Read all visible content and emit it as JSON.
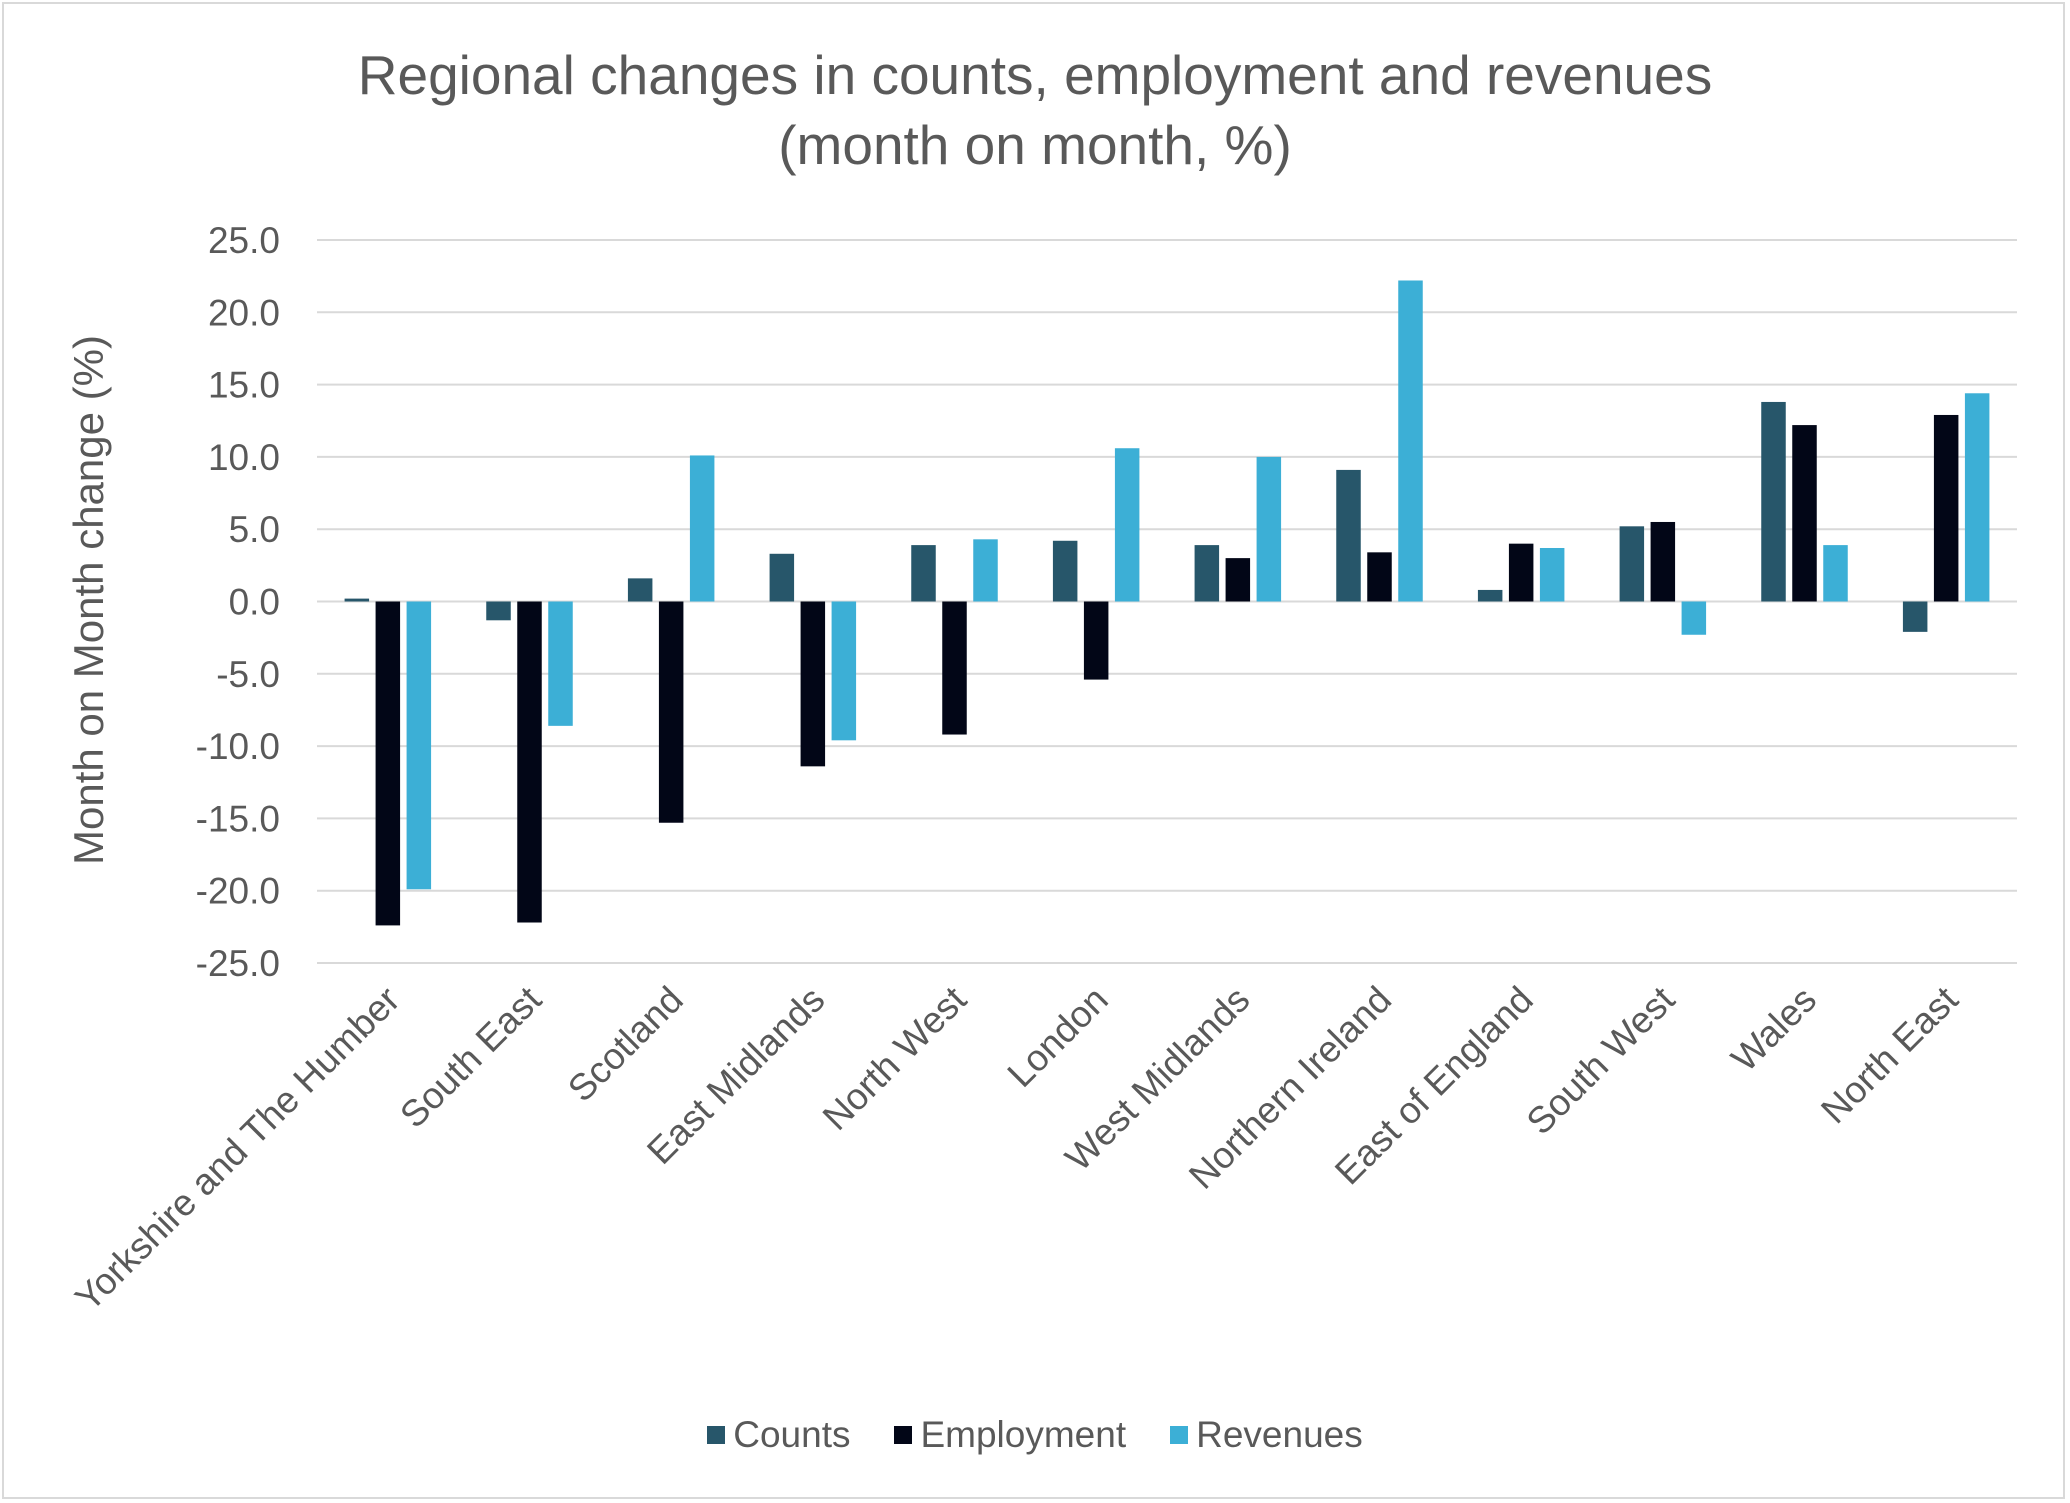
{
  "chart_data": {
    "type": "bar",
    "title_line1": "Regional changes in counts, employment and revenues",
    "title_line2": "(month on month, %)",
    "xlabel": "",
    "ylabel": "Month on Month change (%)",
    "ylim": [
      -25,
      25
    ],
    "ytick_step": 5,
    "ytick_labels": [
      "25.0",
      "20.0",
      "15.0",
      "10.0",
      "5.0",
      "0.0",
      "-5.0",
      "-10.0",
      "-15.0",
      "-20.0",
      "-25.0"
    ],
    "grid": true,
    "legend_position": "bottom",
    "categories": [
      "Yorkshire and The Humber",
      "South East",
      "Scotland",
      "East Midlands",
      "North West",
      "London",
      "West Midlands",
      "Northern Ireland",
      "East of England",
      "South West",
      "Wales",
      "North East"
    ],
    "series": [
      {
        "name": "Counts",
        "color": "#27566A",
        "values": [
          0.2,
          -1.3,
          1.6,
          3.3,
          3.9,
          4.2,
          3.9,
          9.1,
          0.8,
          5.2,
          13.8,
          -2.1
        ]
      },
      {
        "name": "Employment",
        "color": "#020617",
        "values": [
          -22.4,
          -22.2,
          -15.3,
          -11.4,
          -9.2,
          -5.4,
          3.0,
          3.4,
          4.0,
          5.5,
          12.2,
          12.9
        ]
      },
      {
        "name": "Revenues",
        "color": "#3CAFD6",
        "values": [
          -19.9,
          -8.6,
          10.1,
          -9.6,
          4.3,
          10.6,
          10.0,
          22.2,
          3.7,
          -2.3,
          3.9,
          14.4
        ]
      }
    ]
  }
}
